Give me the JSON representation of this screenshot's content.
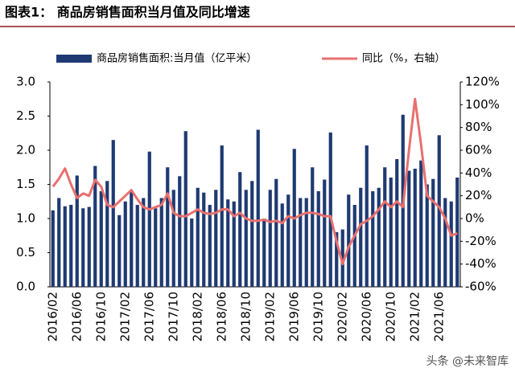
{
  "chart_data": {
    "type": "bar-line",
    "title": "图表1：  商品房销售面积当月值及同比增速",
    "categories": [
      "2016/02",
      null,
      null,
      null,
      "2016/06",
      null,
      null,
      null,
      "2016/10",
      null,
      null,
      null,
      "2017/02",
      null,
      null,
      null,
      "2017/06",
      null,
      null,
      null,
      "2017/10",
      null,
      null,
      null,
      "2018/02",
      null,
      null,
      null,
      "2018/06",
      null,
      null,
      null,
      "2018/10",
      null,
      null,
      null,
      "2019/02",
      null,
      null,
      null,
      "2019/06",
      null,
      null,
      null,
      "2019/10",
      null,
      null,
      null,
      "2020/02",
      null,
      null,
      null,
      "2020/06",
      null,
      null,
      null,
      "2020/10",
      null,
      null,
      null,
      "2021/02",
      null,
      null,
      null,
      "2021/06",
      null,
      null,
      null
    ],
    "series": [
      {
        "name": "商品房销售面积:当月值（亿平米）",
        "type": "bar",
        "color": "#1f3a72",
        "values": [
          1.12,
          1.3,
          1.18,
          1.2,
          1.63,
          1.15,
          1.17,
          1.77,
          1.4,
          1.55,
          2.15,
          1.05,
          1.25,
          1.4,
          1.2,
          1.3,
          1.98,
          1.15,
          1.3,
          1.75,
          1.42,
          1.62,
          2.28,
          1.0,
          1.45,
          1.38,
          1.2,
          1.42,
          2.07,
          1.28,
          1.25,
          1.68,
          1.42,
          1.55,
          2.3,
          1.0,
          1.42,
          1.58,
          1.22,
          1.35,
          2.02,
          1.3,
          1.3,
          1.75,
          1.4,
          1.57,
          2.26,
          0.8,
          0.84,
          1.35,
          1.2,
          1.45,
          2.07,
          1.4,
          1.45,
          1.75,
          1.6,
          1.87,
          2.52,
          1.7,
          1.73,
          1.85,
          1.5,
          1.58,
          2.22,
          1.3,
          1.25,
          1.6
        ]
      },
      {
        "name": "同比（%，右轴）",
        "type": "line",
        "axis": "y2",
        "color": "#e8706f",
        "values": [
          28,
          35,
          44,
          30,
          18,
          22,
          20,
          34,
          28,
          12,
          10,
          15,
          20,
          25,
          17,
          10,
          8,
          10,
          12,
          22,
          5,
          2,
          2,
          5,
          8,
          5,
          4,
          5,
          8,
          8,
          2,
          5,
          0,
          -2,
          -2,
          -1,
          -3,
          -2,
          -4,
          2,
          0,
          3,
          5,
          5,
          4,
          2,
          2,
          -20,
          -40,
          -25,
          -15,
          -5,
          -2,
          2,
          8,
          15,
          10,
          15,
          10,
          60,
          105,
          65,
          20,
          15,
          10,
          0,
          -15,
          -13
        ]
      }
    ],
    "ylim": [
      0,
      3
    ],
    "yticks": [
      {
        "value": 0,
        "label": "0.0"
      },
      0.5,
      {
        "value": 1,
        "label": "1.0"
      },
      1.5,
      {
        "value": 2,
        "label": "2.0"
      },
      2.5,
      {
        "value": 3,
        "label": "3.0"
      }
    ],
    "y2lim": [
      -60,
      120
    ],
    "y2ticks": [
      {
        "value": -60,
        "label": "-60%"
      },
      {
        "value": -40,
        "label": "-40%"
      },
      {
        "value": -20,
        "label": "-20%"
      },
      {
        "value": 0,
        "label": "0%"
      },
      {
        "value": 20,
        "label": "20%"
      },
      {
        "value": 40,
        "label": "40%"
      },
      {
        "value": 60,
        "label": "60%"
      },
      {
        "value": 80,
        "label": "80%"
      },
      {
        "value": 100,
        "label": "100%"
      },
      {
        "value": 120,
        "label": "120%"
      }
    ],
    "legend": "top"
  },
  "watermark": "头条 @未来智库"
}
